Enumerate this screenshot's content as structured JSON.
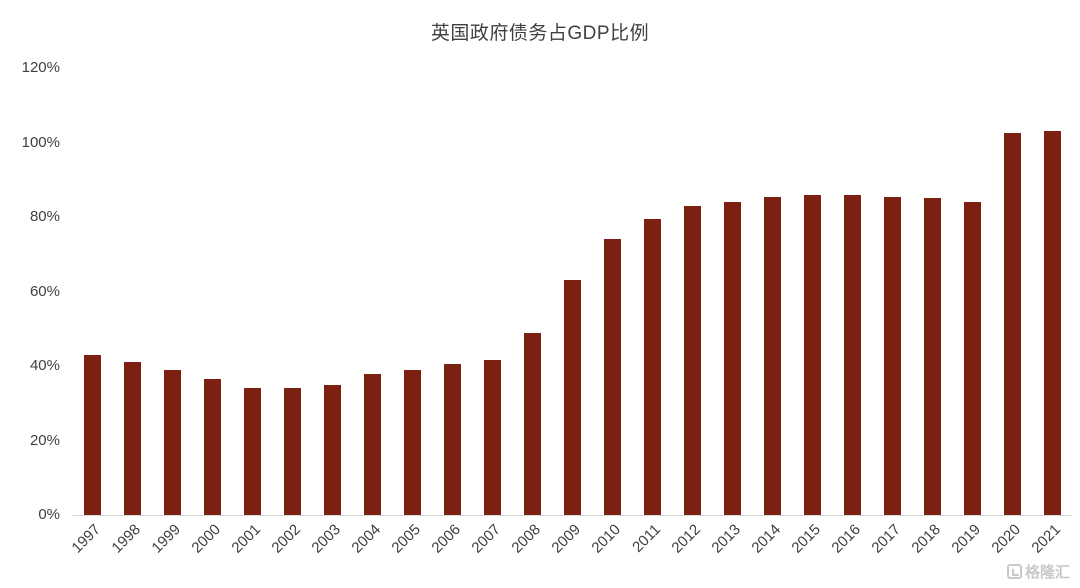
{
  "chart": {
    "title": "英国政府债务占GDP比例",
    "watermark": "格隆汇"
  },
  "chart_data": {
    "type": "bar",
    "title": "英国政府债务占GDP比例",
    "categories": [
      "1997",
      "1998",
      "1999",
      "2000",
      "2001",
      "2002",
      "2003",
      "2004",
      "2005",
      "2006",
      "2007",
      "2008",
      "2009",
      "2010",
      "2011",
      "2012",
      "2013",
      "2014",
      "2015",
      "2016",
      "2017",
      "2018",
      "2019",
      "2020",
      "2021"
    ],
    "values": [
      43,
      41,
      39,
      36.5,
      34,
      34,
      35,
      38,
      39,
      40.5,
      41.5,
      49,
      63,
      74,
      79.5,
      83,
      84,
      85.5,
      86,
      86,
      85.5,
      85,
      84,
      102.5,
      103
    ],
    "xlabel": "",
    "ylabel": "",
    "ylim": [
      0,
      120
    ],
    "ytick_step": 20,
    "ytick_labels": [
      "0%",
      "20%",
      "40%",
      "60%",
      "80%",
      "100%",
      "120%"
    ],
    "bar_color": "#7c2112",
    "grid": false,
    "legend_position": "none"
  }
}
